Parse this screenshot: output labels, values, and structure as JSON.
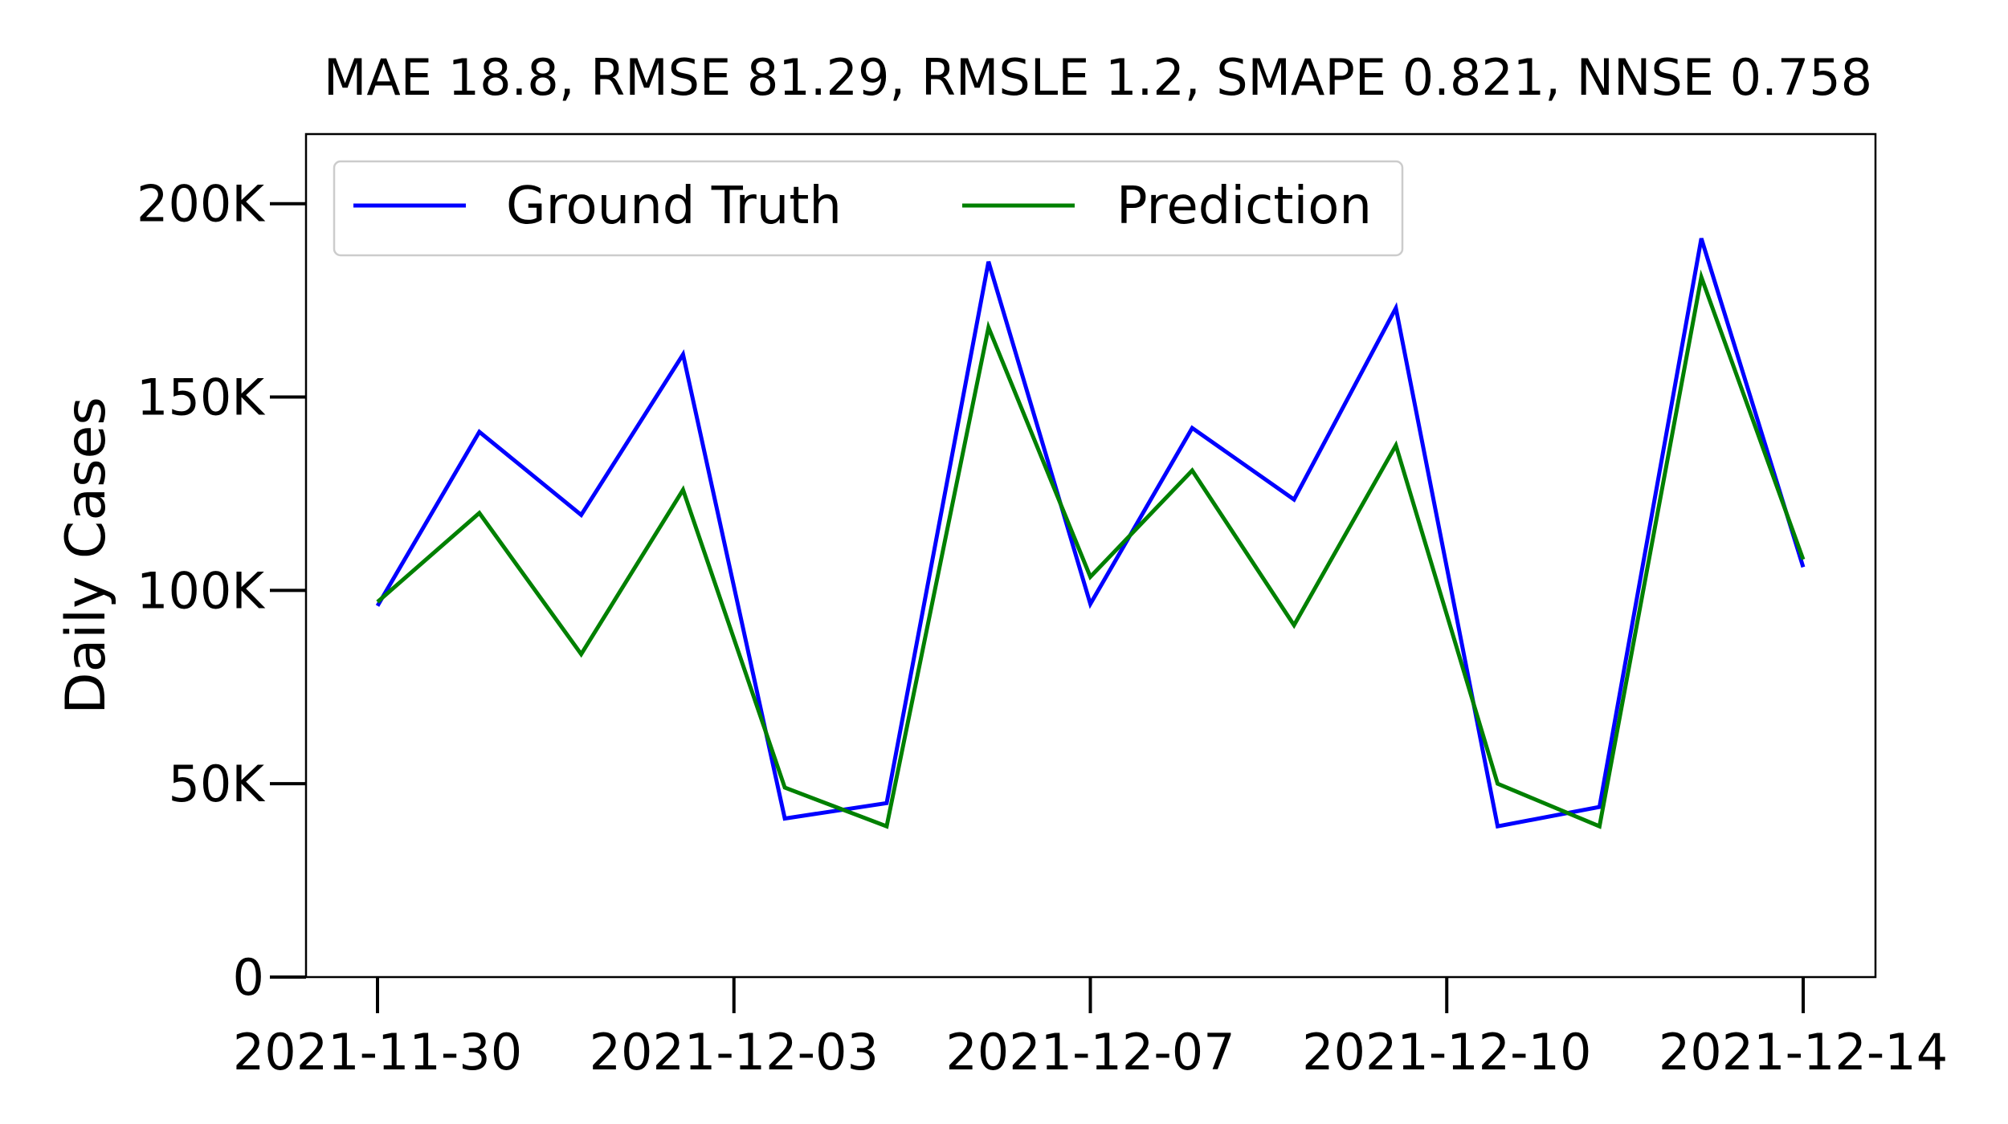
{
  "chart_data": {
    "type": "line",
    "title": "MAE 18.8, RMSE 81.29, RMSLE 1.2, SMAPE 0.821, NNSE 0.758",
    "xlabel": "",
    "ylabel": "Daily Cases",
    "x": [
      "2021-11-30",
      "2021-12-01",
      "2021-12-02",
      "2021-12-03",
      "2021-12-04",
      "2021-12-05",
      "2021-12-06",
      "2021-12-07",
      "2021-12-08",
      "2021-12-09",
      "2021-12-10",
      "2021-12-11",
      "2021-12-12",
      "2021-12-13",
      "2021-12-14"
    ],
    "x_ticks": [
      "2021-11-30",
      "2021-12-03",
      "2021-12-07",
      "2021-12-10",
      "2021-12-14"
    ],
    "x_tick_positions": [
      0,
      3.5,
      7,
      10.5,
      14
    ],
    "y_ticks": [
      0,
      50000,
      100000,
      150000,
      200000
    ],
    "y_tick_labels": [
      "0",
      "50K",
      "100K",
      "150K",
      "200K"
    ],
    "ylim": [
      0,
      218000
    ],
    "grid": false,
    "legend_placement": "top-left",
    "series": [
      {
        "name": "Ground Truth",
        "color": "#0000ff",
        "values": [
          96000,
          141000,
          119500,
          161000,
          41000,
          45000,
          185000,
          96500,
          142000,
          123500,
          173000,
          39000,
          44000,
          191000,
          106000
        ]
      },
      {
        "name": "Prediction",
        "color": "#008000",
        "values": [
          97000,
          120000,
          83500,
          126000,
          49000,
          39000,
          168000,
          103500,
          131000,
          91000,
          137500,
          50000,
          39000,
          181000,
          108000
        ]
      }
    ]
  }
}
